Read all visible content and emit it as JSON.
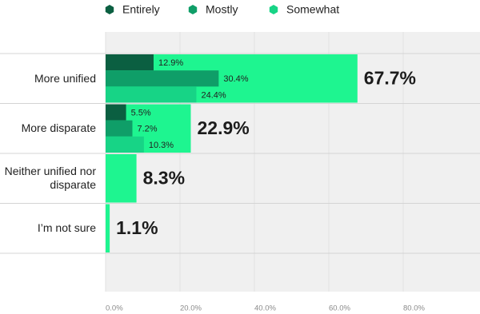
{
  "chart_data": {
    "type": "bar",
    "orientation": "horizontal",
    "categories": [
      "More unified",
      "More disparate",
      "Neither unified nor disparate",
      "I’m not sure"
    ],
    "values": [
      67.7,
      22.9,
      8.3,
      1.1
    ],
    "value_labels": [
      "67.7%",
      "22.9%",
      "8.3%",
      "1.1%"
    ],
    "color": "#1ef590",
    "series": [
      {
        "name": "Entirely",
        "color": "#0b5f41",
        "values": [
          12.9,
          5.5,
          null,
          null
        ],
        "value_labels": [
          "12.9%",
          "5.5%",
          null,
          null
        ]
      },
      {
        "name": "Mostly",
        "color": "#0f9e68",
        "values": [
          30.4,
          7.2,
          null,
          null
        ],
        "value_labels": [
          "30.4%",
          "7.2%",
          null,
          null
        ]
      },
      {
        "name": "Somewhat",
        "color": "#17d486",
        "values": [
          24.4,
          10.3,
          null,
          null
        ],
        "value_labels": [
          "24.4%",
          "10.3%",
          null,
          null
        ]
      }
    ],
    "xlim": [
      0,
      100
    ],
    "xticks": [
      {
        "value": 0,
        "label": "0.0%"
      },
      {
        "value": 20,
        "label": "20.0%"
      },
      {
        "value": 40,
        "label": "40.0%"
      },
      {
        "value": 60,
        "label": "60.0%"
      },
      {
        "value": 80,
        "label": "80.0%"
      }
    ],
    "grid": true,
    "legend": "top"
  }
}
